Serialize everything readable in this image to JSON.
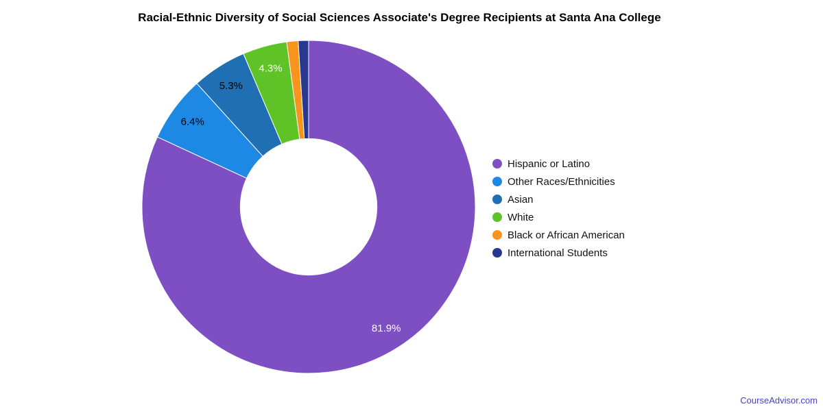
{
  "title": "Racial-Ethnic Diversity of Social Sciences Associate's Degree Recipients at Santa Ana College",
  "watermark": "CourseAdvisor.com",
  "chart_data": {
    "type": "pie",
    "donut": true,
    "start_angle_deg": 0,
    "direction": "clockwise",
    "legend_position": "right",
    "inner_radius_ratio": 0.41,
    "label_radius_ratio": 0.865,
    "background": "#ffffff",
    "series": [
      {
        "label": "Hispanic or Latino",
        "value": 81.9,
        "color": "#7d4fc3",
        "data_label": "81.9%",
        "label_color": "#ffffff"
      },
      {
        "label": "Other Races/Ethnicities",
        "value": 6.4,
        "color": "#1e88e5",
        "data_label": "6.4%",
        "label_color": "#000000"
      },
      {
        "label": "Asian",
        "value": 5.3,
        "color": "#1f6fb2",
        "data_label": "5.3%",
        "label_color": "#000000"
      },
      {
        "label": "White",
        "value": 4.3,
        "color": "#5fc327",
        "data_label": "4.3%",
        "label_color": "#ffffff"
      },
      {
        "label": "Black or African American",
        "value": 1.1,
        "color": "#f7941e",
        "data_label": "",
        "label_color": "#ffffff"
      },
      {
        "label": "International Students",
        "value": 1.0,
        "color": "#28388e",
        "data_label": "",
        "label_color": "#ffffff"
      }
    ]
  }
}
